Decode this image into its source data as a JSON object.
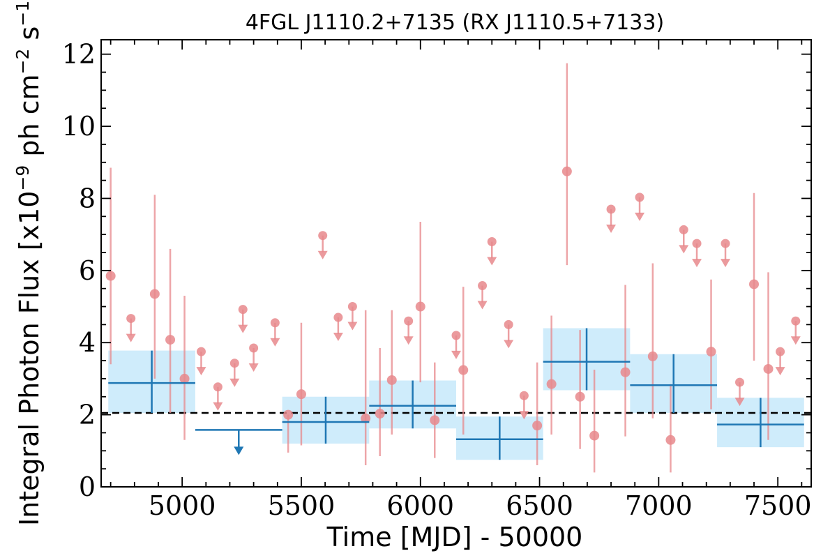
{
  "chart_data": {
    "type": "scatter",
    "title": "4FGL J1110.2+7135 (RX J1110.5+7133)",
    "xlabel": "Time [MJD] - 50000",
    "ylabel": "Integral Photon Flux [x10",
    "ylabel_exp1": "−9",
    "ylabel_mid": " ph cm",
    "ylabel_exp2": "−2",
    "ylabel_mid2": " s",
    "ylabel_exp3": "−1",
    "ylabel_end": "]",
    "xlim": [
      4660,
      7640
    ],
    "ylim": [
      0,
      12.4
    ],
    "xticks": [
      5000,
      5500,
      6000,
      6500,
      7000,
      7500
    ],
    "yticks": [
      0,
      2,
      4,
      6,
      8,
      10,
      12
    ],
    "average_flux": 2.05,
    "colors": {
      "fine": "#e8888c",
      "coarse": "#1f77b4",
      "band": "#cfecfb",
      "average": "#000000"
    },
    "fine_points": [
      {
        "x": 4700,
        "y": 5.85,
        "ylo": 3.4,
        "yhi": 8.85
      },
      {
        "x": 4885,
        "y": 5.35,
        "ylo": 3.0,
        "yhi": 8.1
      },
      {
        "x": 4950,
        "y": 4.08,
        "ylo": 2.05,
        "yhi": 6.6
      },
      {
        "x": 5010,
        "y": 3.0,
        "ylo": 1.3,
        "yhi": 5.3
      },
      {
        "x": 5500,
        "y": 2.57,
        "ylo": 1.15,
        "yhi": 4.55
      },
      {
        "x": 5445,
        "y": 2.0,
        "ylo": 0.95,
        "yhi": 2.0
      },
      {
        "x": 5770,
        "y": 1.9,
        "ylo": 0.6,
        "yhi": 4.9
      },
      {
        "x": 5830,
        "y": 2.03,
        "ylo": 0.85,
        "yhi": 3.85
      },
      {
        "x": 5880,
        "y": 2.96,
        "ylo": 1.45,
        "yhi": 4.9
      },
      {
        "x": 6000,
        "y": 5.0,
        "ylo": 2.9,
        "yhi": 7.35
      },
      {
        "x": 6060,
        "y": 1.85,
        "ylo": 0.8,
        "yhi": 3.45
      },
      {
        "x": 6180,
        "y": 3.24,
        "ylo": 1.45,
        "yhi": 5.55
      },
      {
        "x": 6490,
        "y": 1.7,
        "ylo": 0.6,
        "yhi": 3.45
      },
      {
        "x": 6550,
        "y": 2.85,
        "ylo": 1.45,
        "yhi": 4.75
      },
      {
        "x": 6615,
        "y": 8.75,
        "ylo": 6.15,
        "yhi": 11.75
      },
      {
        "x": 6670,
        "y": 2.5,
        "ylo": 1.05,
        "yhi": 4.35
      },
      {
        "x": 6730,
        "y": 1.42,
        "ylo": 0.4,
        "yhi": 3.25
      },
      {
        "x": 6860,
        "y": 3.18,
        "ylo": 1.4,
        "yhi": 5.6
      },
      {
        "x": 6975,
        "y": 3.62,
        "ylo": 1.9,
        "yhi": 6.2
      },
      {
        "x": 7050,
        "y": 1.3,
        "ylo": 0.4,
        "yhi": 2.85
      },
      {
        "x": 7220,
        "y": 3.75,
        "ylo": 2.15,
        "yhi": 5.75
      },
      {
        "x": 7400,
        "y": 5.62,
        "ylo": 3.5,
        "yhi": 8.15
      },
      {
        "x": 7460,
        "y": 3.27,
        "ylo": 1.3,
        "yhi": 5.95
      }
    ],
    "fine_upper_limits": [
      {
        "x": 4785,
        "y": 4.67
      },
      {
        "x": 5080,
        "y": 3.75
      },
      {
        "x": 5150,
        "y": 2.77
      },
      {
        "x": 5220,
        "y": 3.43
      },
      {
        "x": 5255,
        "y": 4.92
      },
      {
        "x": 5300,
        "y": 3.85
      },
      {
        "x": 5390,
        "y": 4.55
      },
      {
        "x": 5590,
        "y": 6.97
      },
      {
        "x": 5655,
        "y": 4.7
      },
      {
        "x": 5715,
        "y": 5.0
      },
      {
        "x": 5950,
        "y": 4.6
      },
      {
        "x": 6150,
        "y": 4.2
      },
      {
        "x": 6260,
        "y": 5.58
      },
      {
        "x": 6300,
        "y": 6.8
      },
      {
        "x": 6370,
        "y": 4.5
      },
      {
        "x": 6435,
        "y": 2.53
      },
      {
        "x": 6800,
        "y": 7.7
      },
      {
        "x": 6920,
        "y": 8.03
      },
      {
        "x": 7105,
        "y": 7.13
      },
      {
        "x": 7160,
        "y": 6.75
      },
      {
        "x": 7280,
        "y": 6.75
      },
      {
        "x": 7340,
        "y": 2.9
      },
      {
        "x": 7510,
        "y": 3.75
      },
      {
        "x": 7575,
        "y": 4.6
      }
    ],
    "coarse_bins": [
      {
        "x0": 4690,
        "x1": 5055,
        "y": 2.88,
        "ylo": 2.05,
        "yhi": 3.78
      },
      {
        "x0": 5420,
        "x1": 5785,
        "y": 1.8,
        "ylo": 1.2,
        "yhi": 2.5
      },
      {
        "x0": 5785,
        "x1": 6150,
        "y": 2.25,
        "ylo": 1.62,
        "yhi": 2.95
      },
      {
        "x0": 6150,
        "x1": 6515,
        "y": 1.32,
        "ylo": 0.75,
        "yhi": 1.95
      },
      {
        "x0": 6515,
        "x1": 6880,
        "y": 3.47,
        "ylo": 2.68,
        "yhi": 4.4
      },
      {
        "x0": 6880,
        "x1": 7245,
        "y": 2.82,
        "ylo": 2.05,
        "yhi": 3.68
      },
      {
        "x0": 7245,
        "x1": 7610,
        "y": 1.73,
        "ylo": 1.1,
        "yhi": 2.47
      }
    ],
    "coarse_upper_limits": [
      {
        "x0": 5055,
        "x1": 5420,
        "y": 1.58
      }
    ]
  }
}
